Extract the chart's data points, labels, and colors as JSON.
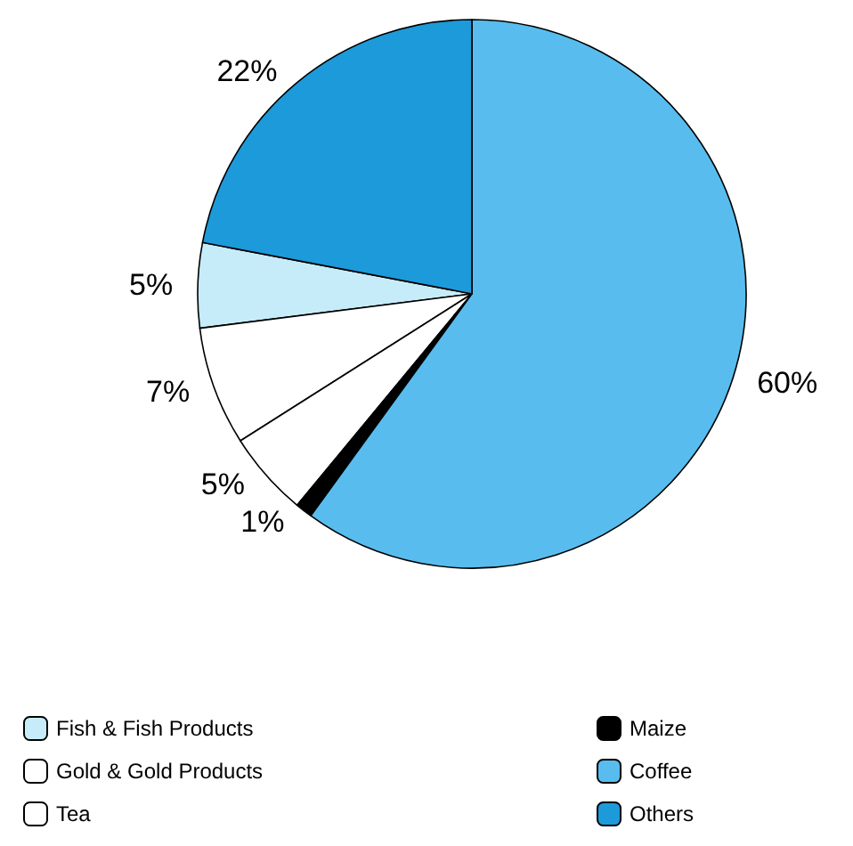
{
  "chart_data": {
    "type": "pie",
    "categories": [
      "Fish & Fish Products",
      "Gold & Gold Products",
      "Tea",
      "Maize",
      "Coffee",
      "Others"
    ],
    "values": [
      5,
      7,
      5,
      1,
      60,
      22
    ],
    "colors": [
      "#c6ecfa",
      "#ffffff",
      "#ffffff",
      "#000000",
      "#58bdee",
      "#1d9ad9"
    ],
    "value_labels": [
      "5%",
      "7%",
      "5%",
      "1%",
      "60%",
      "22%"
    ],
    "legend": "bottom"
  }
}
